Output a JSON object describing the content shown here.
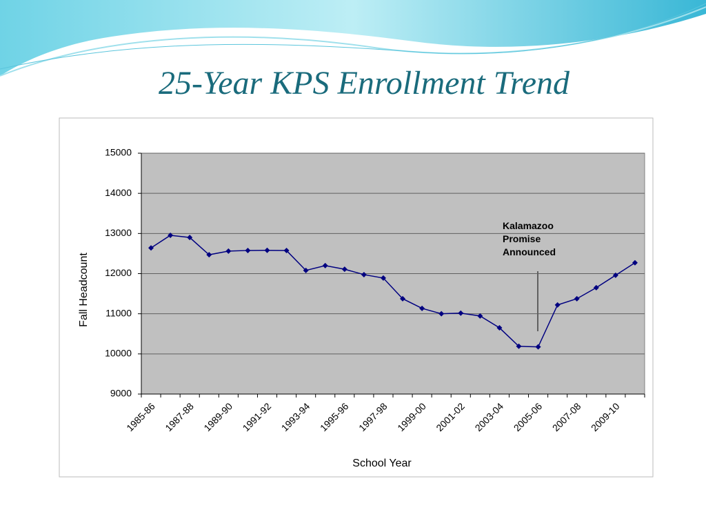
{
  "chart_data": {
    "type": "line",
    "title": "25-Year KPS Enrollment Trend",
    "x_label": "School Year",
    "y_label": "Fall Headcount",
    "annotation": "Kalamazoo Promise Announced",
    "categories": [
      "1985-86",
      null,
      "1987-88",
      null,
      "1989-90",
      null,
      "1991-92",
      null,
      "1993-94",
      null,
      "1995-96",
      null,
      "1997-98",
      null,
      "1999-00",
      null,
      "2001-02",
      null,
      "2003-04",
      null,
      "2005-06",
      null,
      "2007-08",
      null,
      "2009-10",
      null
    ],
    "values": [
      12640,
      12955,
      12900,
      12470,
      12560,
      12577,
      12580,
      12575,
      12080,
      12200,
      12110,
      11975,
      11890,
      11375,
      11135,
      11000,
      11015,
      10945,
      10650,
      10190,
      10175,
      11220,
      11375,
      11650,
      11960,
      12270
    ],
    "color": "#000080",
    "ylim": [
      9000,
      15000
    ],
    "yticks": [
      9000,
      10000,
      11000,
      12000,
      13000,
      14000,
      15000
    ],
    "grid": true
  }
}
